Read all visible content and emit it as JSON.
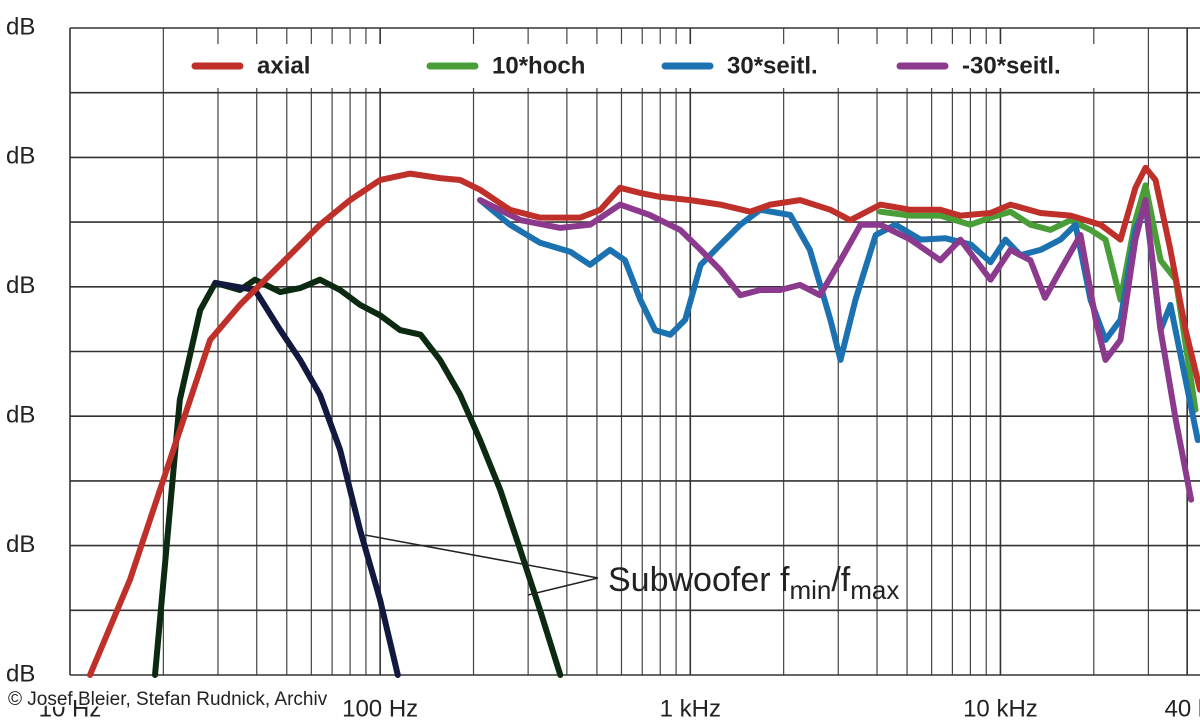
{
  "chart_data": {
    "type": "line",
    "xscale": "log",
    "grid": true,
    "legend": "top",
    "xlim": [
      10,
      44000
    ],
    "ylim": [
      0,
      100
    ],
    "xticks": [
      {
        "value": 10,
        "label": "10 Hz"
      },
      {
        "value": 100,
        "label": "100 Hz"
      },
      {
        "value": 1000,
        "label": "1 kHz"
      },
      {
        "value": 10000,
        "label": "10 kHz"
      },
      {
        "value": 40000,
        "label": "40 k"
      }
    ],
    "yticks": [
      {
        "value": 0,
        "label": "dB"
      },
      {
        "value": 20,
        "label": "dB"
      },
      {
        "value": 40,
        "label": "dB"
      },
      {
        "value": 60,
        "label": "dB"
      },
      {
        "value": 80,
        "label": "dB"
      },
      {
        "value": 100,
        "label": "dB"
      }
    ],
    "series": [
      {
        "name": "axial",
        "color": "#c0302a",
        "x": [
          11.6,
          15.6,
          21,
          28.3,
          35.3,
          47.6,
          64,
          80,
          100,
          125,
          156,
          181,
          210,
          262,
          328,
          442,
          513,
          594,
          690,
          800,
          1000,
          1250,
          1560,
          1810,
          2260,
          2830,
          3280,
          4100,
          5130,
          6400,
          7430,
          9290,
          10770,
          13460,
          16830,
          21030,
          24380,
          27230,
          29350,
          31620,
          35330,
          39530,
          44000
        ],
        "values": [
          0,
          14.7,
          33.2,
          51.8,
          57.2,
          63.4,
          69.6,
          73.4,
          76.5,
          77.5,
          76.8,
          76.5,
          75,
          71.9,
          70.7,
          70.7,
          71.9,
          75.3,
          74.5,
          73.9,
          73.4,
          72.7,
          71.6,
          72.7,
          73.4,
          71.9,
          70.3,
          72.7,
          71.9,
          71.9,
          71,
          71.4,
          72.7,
          71.4,
          71,
          69.6,
          67.3,
          75.3,
          78.4,
          76.5,
          65.7,
          53.3,
          44.1
        ]
      },
      {
        "name": "10*hoch",
        "color": "#4a9e38",
        "x": [
          4100,
          5130,
          6400,
          8000,
          9290,
          10770,
          12490,
          14480,
          16830,
          19520,
          21820,
          24380,
          27230,
          29350,
          32830,
          36760,
          42560
        ],
        "values": [
          71.6,
          71,
          71,
          69.6,
          70.7,
          71.6,
          69.6,
          68.8,
          70.3,
          68.8,
          67.3,
          58,
          70.3,
          75.7,
          64.1,
          61.1,
          41
        ]
      },
      {
        "name": "30*seitl.",
        "color": "#1c72b0",
        "x": [
          210,
          262,
          328,
          411,
          475,
          551,
          616,
          690,
          770,
          862,
          963,
          1080,
          1250,
          1450,
          1680,
          2100,
          2430,
          2830,
          3050,
          3410,
          3960,
          4590,
          5530,
          6660,
          8040,
          9290,
          10380,
          11600,
          13460,
          15620,
          17460,
          19520,
          21820,
          24380,
          27230,
          29350,
          32830,
          35330,
          39530,
          43290
        ],
        "values": [
          73.4,
          69.6,
          66.8,
          65.4,
          63.4,
          65.7,
          64.1,
          58,
          53.3,
          52.6,
          54.9,
          63.4,
          66.5,
          69.6,
          71.9,
          71.1,
          65.7,
          54.9,
          48.7,
          58,
          68,
          69.6,
          67.3,
          67.5,
          66.5,
          63.8,
          67.3,
          64.9,
          65.7,
          67.3,
          69.6,
          58,
          51.8,
          54.9,
          68.8,
          72.7,
          53.3,
          57.2,
          45.6,
          36.3
        ]
      },
      {
        "name": "-30*seitl.",
        "color": "#8c3a8e",
        "x": [
          210,
          284,
          381,
          475,
          594,
          740,
          928,
          1080,
          1250,
          1450,
          1680,
          1950,
          2260,
          2620,
          3050,
          3540,
          4100,
          5130,
          6400,
          7430,
          9290,
          10770,
          12490,
          13920,
          15620,
          18120,
          20290,
          21820,
          24380,
          27230,
          29350,
          32830,
          36760,
          41190
        ],
        "values": [
          73.4,
          70.3,
          69.1,
          69.6,
          72.7,
          71.1,
          68.8,
          65.7,
          62.6,
          58.7,
          59.5,
          59.5,
          60.3,
          58.7,
          64.1,
          69.6,
          69.6,
          67.3,
          64.1,
          67.3,
          61.1,
          65.7,
          64.1,
          58.3,
          62.6,
          68,
          54.9,
          48.7,
          51.8,
          67.3,
          73.4,
          53.3,
          39.4,
          27.1
        ]
      },
      {
        "color": "#0c2a12",
        "x": [
          18.8,
          20.3,
          22.6,
          26.3,
          29.4,
          35.3,
          39.5,
          47.6,
          55.2,
          64,
          74.3,
          86.2,
          100,
          116,
          135,
          156,
          181,
          210,
          244,
          283,
          328,
          381
        ],
        "values": [
          0,
          17.8,
          42.5,
          56.4,
          60.6,
          59.5,
          61.1,
          59.2,
          59.8,
          61.1,
          59.5,
          57.2,
          55.6,
          53.3,
          52.6,
          48.7,
          43.3,
          36.3,
          28.6,
          19.3,
          10,
          0
        ]
      },
      {
        "color": "#12183e",
        "x": [
          29.4,
          39.5,
          47.6,
          55.2,
          64,
          74.3,
          86.2,
          100,
          114
        ],
        "values": [
          60.6,
          59.5,
          53.3,
          48.7,
          43.3,
          34.8,
          22.4,
          11.6,
          0
        ]
      }
    ],
    "annotation": {
      "text": "Subwoofer f",
      "sub1": "min",
      "mid": "/f",
      "sub2": "max"
    },
    "credit": "© Josef Bleier, Stefan Rudnick, Archiv"
  }
}
